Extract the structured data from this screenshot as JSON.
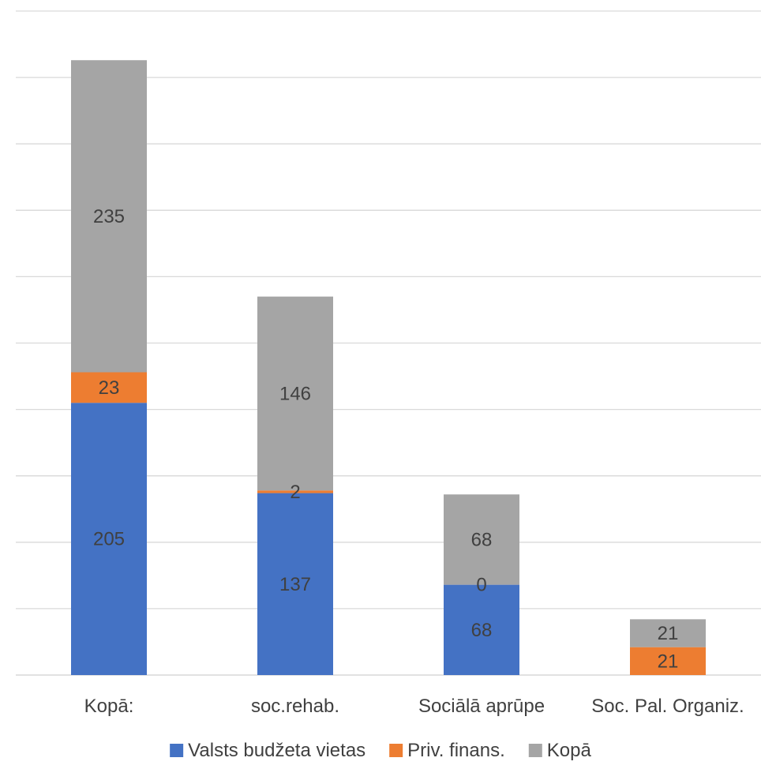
{
  "chart_data": {
    "type": "bar",
    "stacked": true,
    "categories": [
      "Kopā:",
      "soc.rehab.",
      "Sociālā aprūpe",
      "Soc. Pal. Organiz."
    ],
    "series": [
      {
        "name": "Valsts budžeta vietas",
        "color": "#4472C4",
        "values": [
          205,
          137,
          68,
          0
        ],
        "labels": [
          "205",
          "137",
          "68",
          ""
        ]
      },
      {
        "name": "Priv. finans.",
        "color": "#ED7D31",
        "values": [
          23,
          2,
          0,
          21
        ],
        "labels": [
          "23",
          "2",
          "0",
          "21"
        ]
      },
      {
        "name": "Kopā",
        "color": "#A5A5A5",
        "values": [
          235,
          146,
          68,
          21
        ],
        "labels": [
          "235",
          "146",
          "68",
          "21"
        ]
      }
    ],
    "ylim": [
      0,
      500
    ],
    "ytick_step": 50,
    "grid": true,
    "legend_position": "bottom"
  }
}
